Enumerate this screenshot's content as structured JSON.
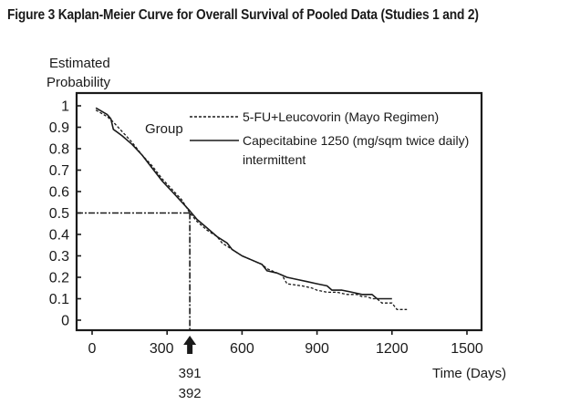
{
  "chart_data": {
    "type": "line",
    "title": "Figure 3 Kaplan-Meier Curve for Overall Survival of Pooled Data (Studies 1 and 2)",
    "ylabel": [
      "Estimated",
      "Probability"
    ],
    "xlabel": "Time (Days)",
    "xlim": [
      -40,
      1560
    ],
    "ylim": [
      -0.05,
      1.07
    ],
    "x_ticks": [
      0,
      300,
      600,
      900,
      1200,
      1500
    ],
    "y_ticks": [
      1,
      0.9,
      0.8,
      0.7,
      0.6,
      0.5,
      0.4,
      0.3,
      0.2,
      0.1,
      0
    ],
    "y_tick_labels": [
      "1",
      "0.9",
      "0.8",
      "0.7",
      "0.6",
      "0.5",
      "0.4",
      "0.3",
      "0.2",
      "0.1",
      "0"
    ],
    "grid": false,
    "legend": {
      "title": "Group",
      "position": "top-center",
      "entries": [
        {
          "label": "5-FU+Leucovorin (Mayo Regimen)",
          "style": "dashed"
        },
        {
          "label": "Capecitabine 1250 (mg/sqm twice daily)",
          "label2": "intermittent",
          "style": "solid"
        }
      ]
    },
    "median_reference": {
      "y": 0.5,
      "x": 391,
      "annotation_labels": [
        "391",
        "392"
      ],
      "arrow": "up"
    },
    "series": [
      {
        "name": "5-FU+Leucovorin (Mayo Regimen)",
        "style": "dashed",
        "x": [
          15,
          60,
          80,
          120,
          160,
          200,
          240,
          280,
          320,
          360,
          391,
          420,
          460,
          500,
          520,
          560,
          600,
          640,
          680,
          700,
          740,
          760,
          780,
          840,
          880,
          900,
          940,
          980,
          1020,
          1060,
          1080,
          1100,
          1120,
          1140,
          1160,
          1200,
          1220,
          1260
        ],
        "y": [
          0.98,
          0.95,
          0.93,
          0.88,
          0.83,
          0.77,
          0.72,
          0.66,
          0.61,
          0.56,
          0.5,
          0.46,
          0.42,
          0.39,
          0.36,
          0.33,
          0.3,
          0.28,
          0.26,
          0.24,
          0.22,
          0.21,
          0.17,
          0.16,
          0.15,
          0.14,
          0.13,
          0.13,
          0.12,
          0.12,
          0.11,
          0.11,
          0.1,
          0.1,
          0.08,
          0.08,
          0.05,
          0.05
        ]
      },
      {
        "name": "Capecitabine 1250 (mg/sqm twice daily) intermittent",
        "style": "solid",
        "x": [
          15,
          60,
          75,
          85,
          120,
          160,
          200,
          240,
          280,
          320,
          360,
          391,
          420,
          460,
          500,
          540,
          560,
          600,
          640,
          680,
          700,
          740,
          760,
          780,
          820,
          860,
          900,
          940,
          960,
          1000,
          1040,
          1080,
          1100,
          1120,
          1140,
          1200
        ],
        "y": [
          0.99,
          0.96,
          0.94,
          0.89,
          0.86,
          0.82,
          0.77,
          0.71,
          0.65,
          0.6,
          0.55,
          0.51,
          0.47,
          0.43,
          0.39,
          0.36,
          0.33,
          0.3,
          0.28,
          0.26,
          0.23,
          0.22,
          0.21,
          0.2,
          0.19,
          0.18,
          0.17,
          0.16,
          0.14,
          0.14,
          0.13,
          0.12,
          0.12,
          0.12,
          0.1,
          0.1
        ]
      }
    ]
  }
}
